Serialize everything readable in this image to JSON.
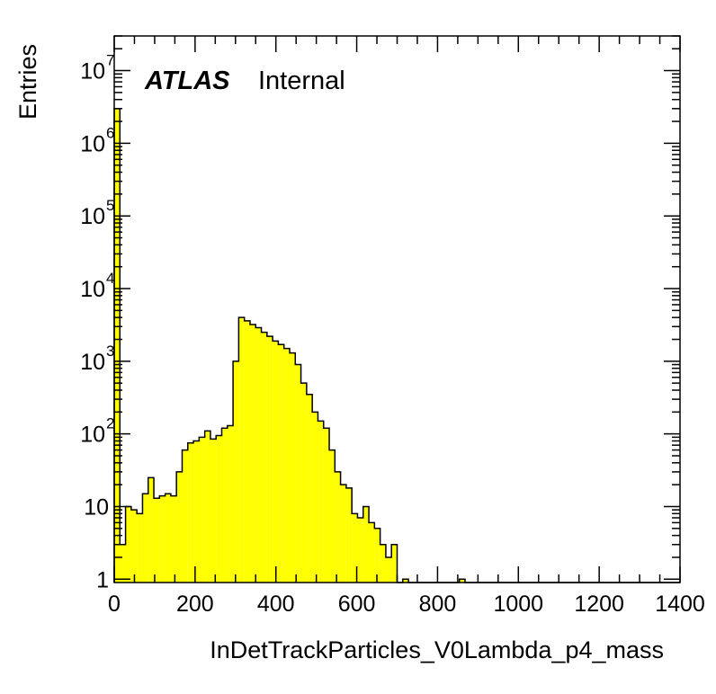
{
  "chart_data": {
    "type": "bar",
    "title": "",
    "xlabel": "InDetTrackParticles_V0Lambda_p4_mass",
    "ylabel": "Entries",
    "xlim": [
      0,
      1400
    ],
    "ylim": [
      0.9,
      30000000
    ],
    "y_scale": "log",
    "fill_color": "#ffff00",
    "line_color": "#000000",
    "grid": false,
    "label": {
      "experiment": "ATLAS",
      "status": "Internal"
    },
    "x_ticks": [
      {
        "value": 0,
        "label": "0"
      },
      {
        "value": 200,
        "label": "200"
      },
      {
        "value": 400,
        "label": "400"
      },
      {
        "value": 600,
        "label": "600"
      },
      {
        "value": 800,
        "label": "800"
      },
      {
        "value": 1000,
        "label": "1000"
      },
      {
        "value": 1200,
        "label": "1200"
      },
      {
        "value": 1400,
        "label": "1400"
      }
    ],
    "y_ticks": [
      {
        "value": 1,
        "base": "1",
        "exp": ""
      },
      {
        "value": 10,
        "base": "10",
        "exp": ""
      },
      {
        "value": 100,
        "base": "10",
        "exp": "2"
      },
      {
        "value": 1000,
        "base": "10",
        "exp": "3"
      },
      {
        "value": 10000,
        "base": "10",
        "exp": "4"
      },
      {
        "value": 100000,
        "base": "10",
        "exp": "5"
      },
      {
        "value": 1000000,
        "base": "10",
        "exp": "6"
      },
      {
        "value": 10000000,
        "base": "10",
        "exp": "7"
      }
    ],
    "bin_width": 14,
    "bins_lo": [
      0,
      14,
      28,
      42,
      56,
      70,
      84,
      98,
      112,
      126,
      140,
      154,
      168,
      182,
      196,
      210,
      224,
      238,
      252,
      266,
      280,
      294,
      308,
      322,
      336,
      350,
      364,
      378,
      392,
      406,
      420,
      434,
      448,
      462,
      476,
      490,
      504,
      518,
      532,
      546,
      560,
      574,
      588,
      602,
      616,
      630,
      644,
      658,
      672,
      686,
      700,
      714,
      728,
      742,
      756,
      770,
      784,
      798,
      812,
      826,
      840,
      854,
      868,
      882,
      896,
      910,
      924,
      938,
      952,
      966,
      980,
      994,
      1008,
      1022,
      1036,
      1050,
      1064,
      1078,
      1092,
      1106,
      1120,
      1134,
      1148,
      1162,
      1176,
      1190,
      1204,
      1218,
      1232,
      1246,
      1260,
      1274,
      1288,
      1302,
      1316,
      1330,
      1344,
      1358,
      1372,
      1386
    ],
    "values": [
      3000000,
      3,
      10,
      9,
      8,
      15,
      25,
      13,
      14,
      15,
      14,
      30,
      60,
      75,
      80,
      90,
      110,
      85,
      95,
      120,
      130,
      1000,
      4000,
      3600,
      3200,
      2900,
      2500,
      2200,
      1900,
      1700,
      1500,
      1300,
      900,
      500,
      350,
      200,
      150,
      120,
      60,
      30,
      20,
      18,
      8,
      7,
      10,
      6,
      5,
      3,
      2,
      3,
      0,
      1,
      0,
      0,
      0,
      0,
      0,
      0,
      0,
      0,
      0,
      1,
      0,
      0,
      0,
      0,
      0,
      0,
      0,
      0,
      0,
      0,
      0,
      0,
      0,
      0,
      0,
      0,
      0,
      0,
      0,
      0,
      0,
      0,
      0,
      0,
      0,
      0,
      0,
      0,
      0,
      0,
      0,
      0,
      0,
      0,
      0,
      0,
      0,
      0
    ]
  }
}
